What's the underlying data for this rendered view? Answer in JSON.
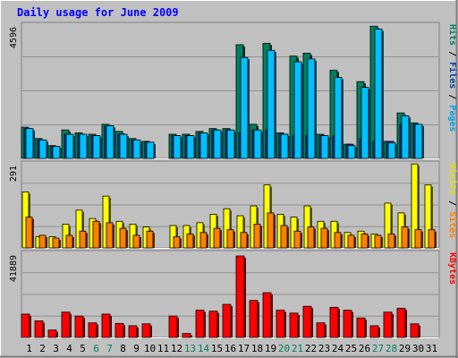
{
  "chart_data": {
    "type": "bar",
    "title": "Daily usage for June 2009",
    "categories": [
      "1",
      "2",
      "3",
      "4",
      "5",
      "6",
      "7",
      "8",
      "9",
      "10",
      "11",
      "12",
      "13",
      "14",
      "15",
      "16",
      "17",
      "18",
      "19",
      "20",
      "21",
      "22",
      "23",
      "24",
      "25",
      "26",
      "27",
      "28",
      "29",
      "30",
      "31"
    ],
    "weekend_days": [
      "6",
      "7",
      "13",
      "14",
      "20",
      "21",
      "27",
      "28"
    ],
    "panels": [
      {
        "id": "top",
        "max_label": "4596",
        "ymax": 4596,
        "axis_labels": [
          {
            "text": "Pages",
            "color": "#00a0e0"
          },
          {
            "text": "Files",
            "color": "#0040a0"
          },
          {
            "text": "Hits",
            "color": "#008060"
          }
        ],
        "series": [
          {
            "name": "Hits",
            "color": "#008060",
            "values": [
              1100,
              700,
              450,
              1000,
              900,
              850,
              1200,
              950,
              700,
              600,
              0,
              850,
              850,
              950,
              1050,
              1050,
              4000,
              1200,
              4050,
              900,
              3600,
              3700,
              850,
              3100,
              500,
              2700,
              4650,
              600,
              1600,
              1250,
              0
            ]
          },
          {
            "name": "Files",
            "color": "#0040a0",
            "values": [
              1050,
              650,
              420,
              850,
              850,
              800,
              1150,
              850,
              650,
              570,
              0,
              800,
              800,
              900,
              1000,
              1000,
              900,
              1000,
              1000,
              850,
              800,
              800,
              800,
              800,
              500,
              700,
              600,
              600,
              1200,
              1200,
              0
            ]
          },
          {
            "name": "Pages",
            "color": "#00c0ff",
            "values": [
              1050,
              650,
              420,
              850,
              850,
              800,
              1150,
              850,
              650,
              570,
              0,
              800,
              800,
              900,
              1000,
              1000,
              3550,
              1000,
              3800,
              850,
              3400,
              3500,
              800,
              2850,
              450,
              2500,
              4550,
              550,
              1500,
              1200,
              0
            ]
          }
        ]
      },
      {
        "id": "mid",
        "max_label": "291",
        "ymax": 291,
        "axis_labels": [
          {
            "text": "Sites",
            "color": "#ff8000"
          },
          {
            "text": "Visits",
            "color": "#e0e000"
          }
        ],
        "series": [
          {
            "name": "Visits",
            "color": "#ffff00",
            "values": [
              200,
              40,
              40,
              85,
              135,
              105,
              185,
              95,
              85,
              75,
              0,
              80,
              80,
              90,
              120,
              140,
              115,
              150,
              225,
              120,
              110,
              150,
              95,
              95,
              55,
              60,
              50,
              160,
              125,
              300,
              225
            ]
          },
          {
            "name": "Sites",
            "color": "#ff8000",
            "values": [
              110,
              45,
              35,
              45,
              60,
              95,
              90,
              70,
              45,
              60,
              0,
              40,
              50,
              55,
              70,
              65,
              55,
              85,
              125,
              80,
              60,
              75,
              70,
              55,
              45,
              50,
              45,
              50,
              75,
              65,
              65
            ]
          }
        ]
      },
      {
        "id": "bot",
        "max_label": "41889",
        "ymax": 41889,
        "axis_labels": [
          {
            "text": "KBytes",
            "color": "#ff0000"
          }
        ],
        "series": [
          {
            "name": "KBytes",
            "color": "#ff0000",
            "values": [
              12000,
              8500,
              3800,
              13000,
              11000,
              7500,
              12000,
              7200,
              6000,
              7000,
              0,
              11000,
              2000,
              14000,
              13500,
              17000,
              41889,
              19000,
              23000,
              14000,
              12500,
              16000,
              7500,
              15500,
              14000,
              10000,
              6000,
              13000,
              15000,
              7000,
              0
            ]
          }
        ]
      }
    ]
  }
}
